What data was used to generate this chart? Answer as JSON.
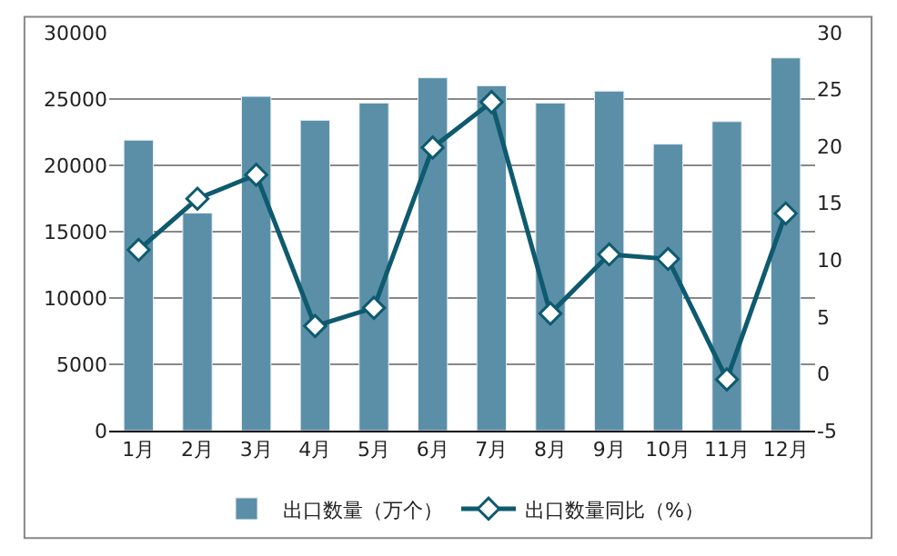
{
  "chart_data": {
    "type": "bar",
    "categories": [
      "1月",
      "2月",
      "3月",
      "4月",
      "5月",
      "6月",
      "7月",
      "8月",
      "9月",
      "10月",
      "11月",
      "12月"
    ],
    "series": [
      {
        "name": "出口数量（万个）",
        "color": "#5b8fa8",
        "values": [
          21900,
          16400,
          25200,
          23400,
          24700,
          26600,
          26000,
          24700,
          25600,
          21600,
          23300,
          28100
        ]
      },
      {
        "name": "出口数量同比（%）",
        "type": "line",
        "axis": "y2",
        "color": "#0e5a6f",
        "marker": "diamond",
        "values": [
          10.9,
          15.4,
          17.5,
          4.2,
          5.8,
          19.9,
          23.9,
          5.3,
          10.5,
          10.1,
          -0.5,
          14.1
        ]
      }
    ],
    "ylim": [
      0,
      30000
    ],
    "yticks": [
      0,
      5000,
      10000,
      15000,
      20000,
      25000,
      30000
    ],
    "y2lim": [
      -5,
      30
    ],
    "y2ticks": [
      -5,
      0,
      5,
      10,
      15,
      20,
      25,
      30
    ],
    "grid": "y",
    "legend": "bottom"
  }
}
